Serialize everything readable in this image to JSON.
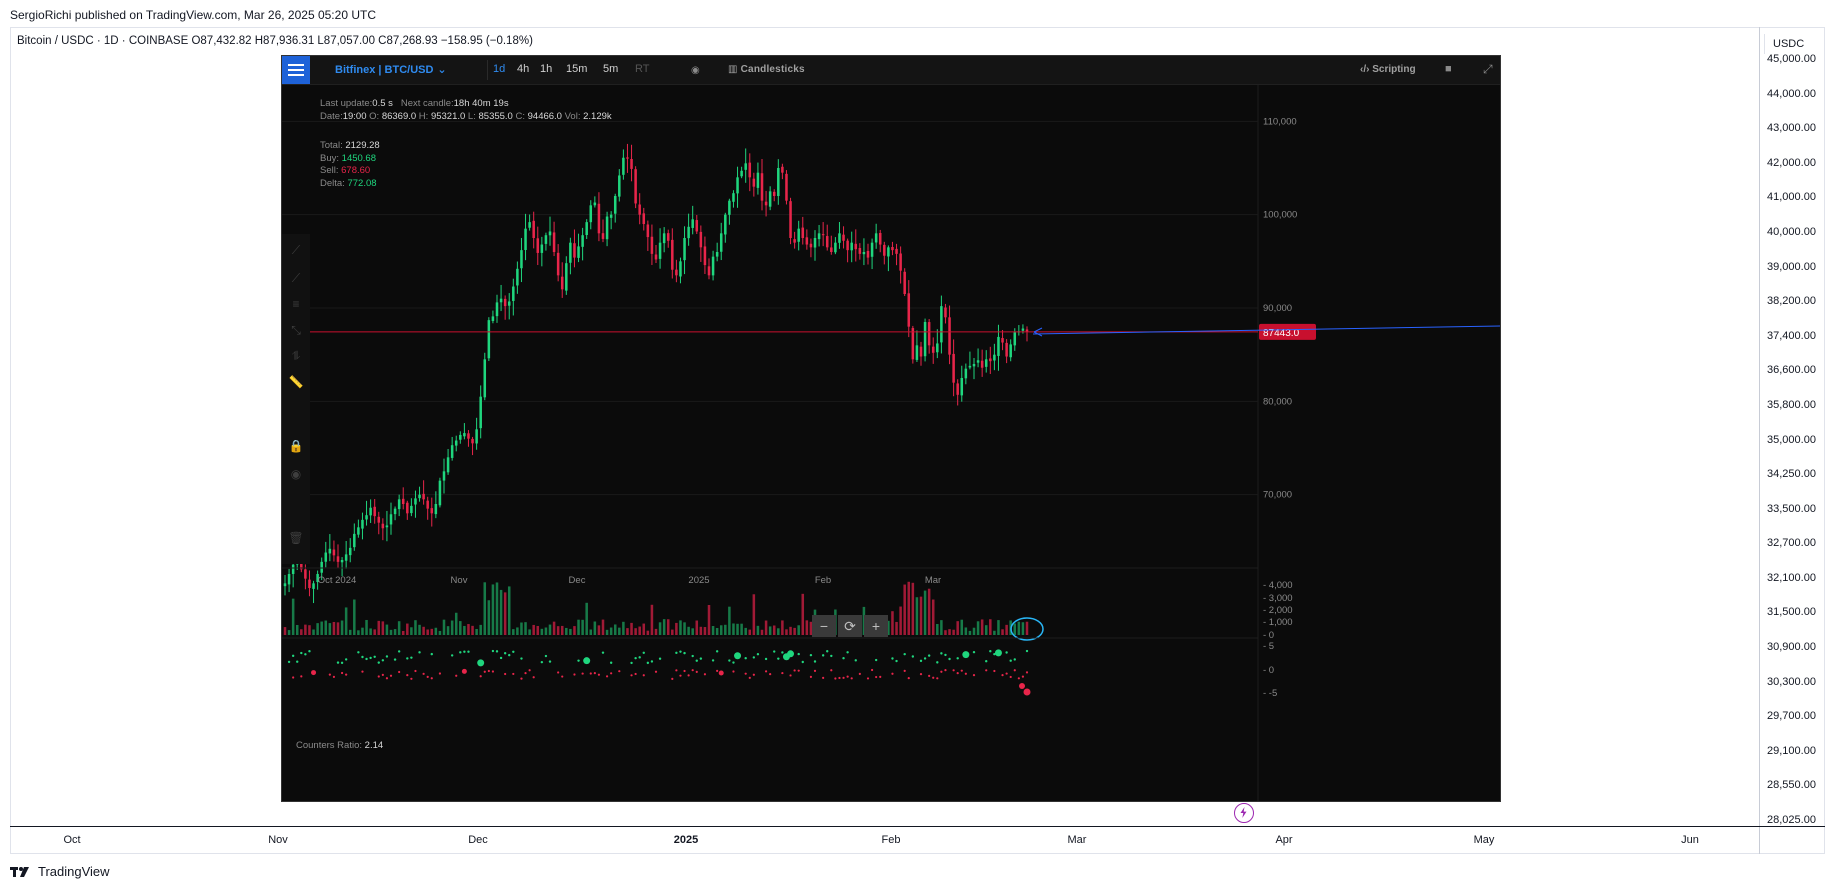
{
  "publisher_line": "SergioRichi published on TradingView.com, Mar 26, 2025 05:20 UTC",
  "symbol_line": "Bitcoin / USDC · 1D · COINBASE  O87,432.82  H87,936.31  L87,057.00  C87,268.93  −158.95 (−0.18%)",
  "outer": {
    "currency": "USDC",
    "price_ticks": [
      "45,000.00",
      "44,000.00",
      "43,000.00",
      "42,000.00",
      "41,000.00",
      "40,000.00",
      "39,000.00",
      "38,200.00",
      "37,400.00",
      "36,600.00",
      "35,800.00",
      "35,000.00",
      "34,250.00",
      "33,500.00",
      "32,700.00",
      "32,100.00",
      "31,500.00",
      "30,900.00",
      "30,300.00",
      "29,700.00",
      "29,100.00",
      "28,550.00",
      "28,025.00"
    ],
    "date_ticks": [
      "Oct",
      "Nov",
      "Dec",
      "2025",
      "Feb",
      "Mar",
      "Apr",
      "May",
      "Jun"
    ],
    "footer_brand": "TradingView"
  },
  "inner": {
    "feed": "Bitfinex | BTC/USD",
    "timeframes": [
      {
        "label": "1d",
        "state": "active"
      },
      {
        "label": "4h",
        "state": "normal"
      },
      {
        "label": "1h",
        "state": "normal"
      },
      {
        "label": "15m",
        "state": "normal"
      },
      {
        "label": "5m",
        "state": "normal"
      },
      {
        "label": "RT",
        "state": "dim"
      }
    ],
    "candles_label": "Candlesticks",
    "scripting_label": "Scripting",
    "last_update_label": "Last update:",
    "last_update_value": "0.5 s",
    "next_candle_label": "Next candle:",
    "next_candle_value": "18h 40m 19s",
    "date_label": "Date:",
    "date_value": "19:00",
    "o_label": "O:",
    "o_value": "86369.0",
    "h_label": "H:",
    "h_value": "95321.0",
    "l_label": "L:",
    "l_value": "85355.0",
    "c_label": "C:",
    "c_value": "94466.0",
    "vol_label": "Vol:",
    "vol_value": "2.129k",
    "stats": [
      {
        "label": "Total:",
        "value": "2129.28",
        "color": "#d8d8d8"
      },
      {
        "label": "Buy:",
        "value": "1450.68",
        "color": "#1fd67e"
      },
      {
        "label": "Sell:",
        "value": "678.60",
        "color": "#e8254a"
      },
      {
        "label": "Delta:",
        "value": "772.08",
        "color": "#1fd67e"
      }
    ],
    "counters_label": "Counters Ratio:",
    "counters_value": "2.14",
    "current_price_label": "87443.0",
    "colors": {
      "up": "#1fd67e",
      "down": "#e8254a",
      "accent": "#2f8bf0",
      "price_line": "#c8102e"
    }
  },
  "chart_data": [
    {
      "type": "candlestick",
      "series_name": "BTC/USD",
      "x_ticks": [
        "Oct 2024",
        "Nov",
        "Dec",
        "2025",
        "Feb",
        "Mar"
      ],
      "y_ticks": [
        110000,
        100000,
        90000,
        80000,
        70000
      ],
      "y_tick_labels": [
        "110,000",
        "100,000",
        "90,000",
        "80,000",
        "70,000"
      ],
      "ylim": [
        63000,
        114000
      ],
      "current_price": 87443.0,
      "approx_closes": [
        60500,
        61500,
        62500,
        63000,
        62000,
        61000,
        60000,
        60500,
        61500,
        62800,
        63800,
        64200,
        63500,
        62800,
        63000,
        63600,
        64300,
        65800,
        66500,
        67300,
        67800,
        68600,
        67700,
        67000,
        66400,
        66700,
        67900,
        68500,
        69500,
        69000,
        68000,
        68800,
        69600,
        70000,
        69500,
        68500,
        68000,
        69000,
        71500,
        72500,
        74000,
        75300,
        75800,
        76400,
        76600,
        76000,
        75500,
        77000,
        80500,
        84500,
        88700,
        89100,
        90600,
        91000,
        90200,
        90700,
        92300,
        94200,
        96200,
        98500,
        99200,
        97500,
        95900,
        96800,
        97800,
        98200,
        96000,
        93500,
        92000,
        94800,
        97000,
        95400,
        96600,
        97800,
        99200,
        101000,
        101300,
        98000,
        97400,
        99800,
        100000,
        102000,
        104200,
        106100,
        106000,
        104900,
        101200,
        100000,
        99000,
        97600,
        95800,
        95200,
        97000,
        98000,
        97200,
        94100,
        93500,
        95000,
        97500,
        98700,
        99500,
        98200,
        96500,
        94600,
        93500,
        95500,
        96000,
        98000,
        100000,
        101500,
        102300,
        104000,
        104700,
        105500,
        104000,
        103000,
        104500,
        101500,
        101000,
        102500,
        102000,
        105000,
        104500,
        101500,
        97500,
        97000,
        98500,
        97500,
        96800,
        96500,
        97500,
        98000,
        97800,
        96500,
        96000,
        97000,
        98000,
        97200,
        96200,
        97000,
        96300,
        95800,
        96000,
        95400,
        97000,
        98000,
        96800,
        95600,
        96500,
        96200,
        95800,
        94000,
        91500,
        88000,
        84500,
        86000,
        84800,
        88500,
        86000,
        85200,
        86200,
        90200,
        89000,
        85000,
        82000,
        80700,
        82500,
        83500,
        83800,
        84000,
        84400,
        83600,
        84500,
        84300,
        85000,
        86900,
        86300,
        84800,
        86100,
        87400,
        87500,
        87800,
        87443
      ],
      "volume_y_ticks": [
        "4,000",
        "3,000",
        "2,000",
        "1,000",
        "0"
      ],
      "oscillator_y_ticks": [
        "5",
        "0",
        "-5"
      ]
    }
  ]
}
